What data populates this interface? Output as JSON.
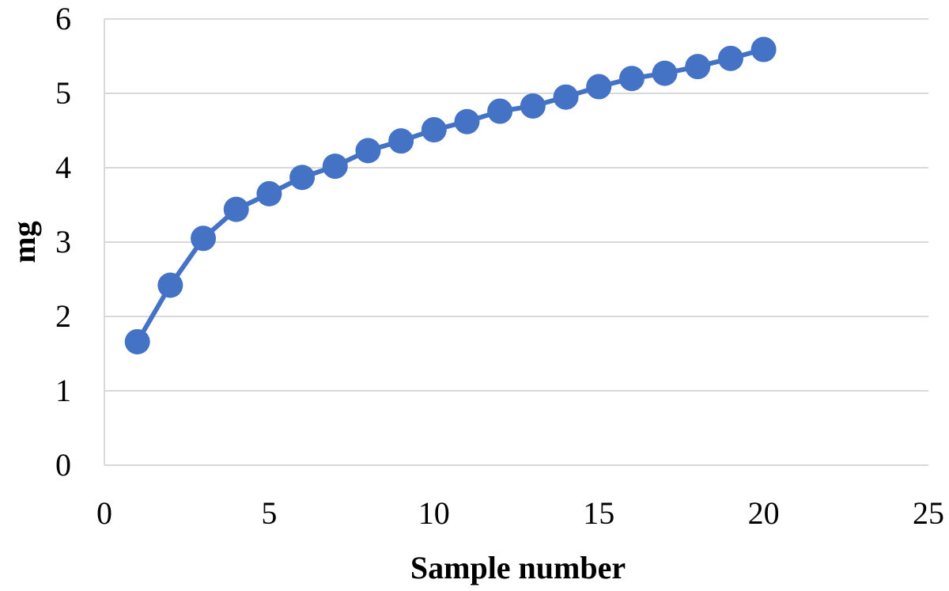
{
  "chart_data": {
    "type": "scatter",
    "title": "",
    "xlabel": "Sample number",
    "ylabel": "mg",
    "xlim": [
      0,
      25
    ],
    "ylim": [
      0,
      6
    ],
    "xticks": [
      0,
      5,
      10,
      15,
      20,
      25
    ],
    "yticks": [
      0,
      1,
      2,
      3,
      4,
      5,
      6
    ],
    "grid": "horizontal",
    "legend": "none",
    "line_color": "#4472c4",
    "series": [
      {
        "x": [
          1,
          2,
          3,
          4,
          5,
          6,
          7,
          8,
          9,
          10,
          11,
          12,
          13,
          14,
          15,
          16,
          17,
          18,
          19,
          20
        ],
        "y": [
          1.66,
          2.42,
          3.05,
          3.44,
          3.65,
          3.87,
          4.02,
          4.23,
          4.36,
          4.51,
          4.62,
          4.76,
          4.83,
          4.95,
          5.09,
          5.2,
          5.27,
          5.36,
          5.47,
          5.59
        ]
      }
    ]
  }
}
